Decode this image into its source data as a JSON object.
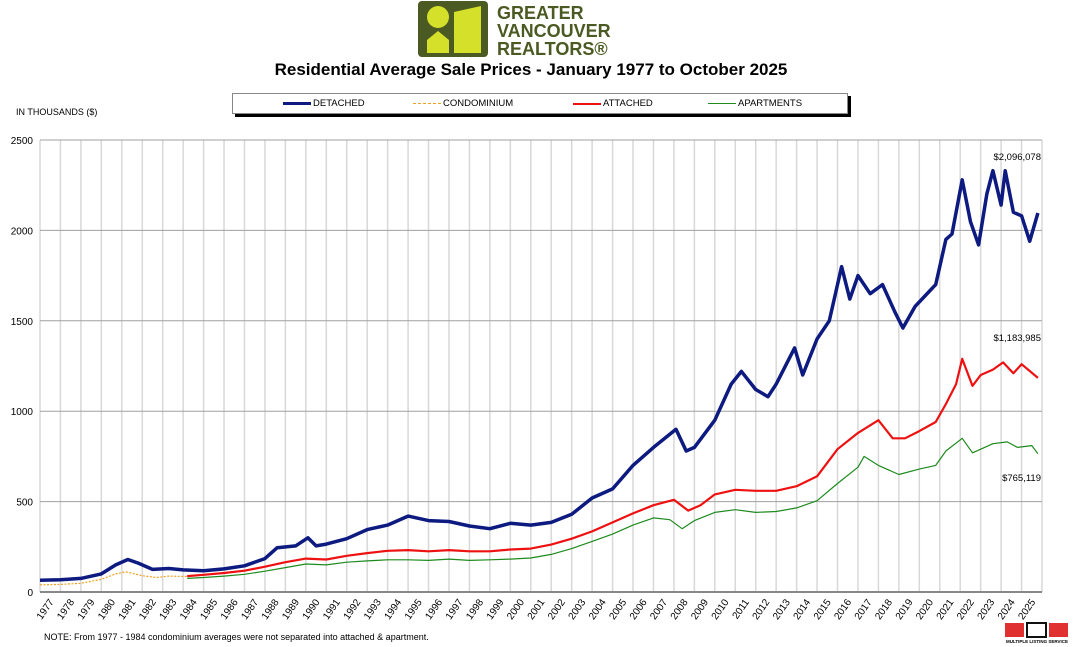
{
  "logo": {
    "text": "GREATER VANCOUVER REALTORS®",
    "color": "#4a5a22",
    "accent": "#d4e02a"
  },
  "mls_logo": {
    "text": "MLS",
    "subtitle": "MULTIPLE LISTING SERVICE"
  },
  "note": "NOTE:  From 1977 - 1984 condominium averages were not separated into attached & apartment.",
  "chart_data": {
    "type": "line",
    "title": "Residential Average Sale Prices  -  January 1977 to October 2025",
    "ylabel": "IN THOUSANDS ($)",
    "xlabel": "",
    "ylim": [
      0,
      2500
    ],
    "yticks": [
      "0",
      "500",
      "1000",
      "1500",
      "2000",
      "2500"
    ],
    "xticks": [
      "1977",
      "1978",
      "1979",
      "1980",
      "1981",
      "1982",
      "1983",
      "1984",
      "1985",
      "1986",
      "1987",
      "1988",
      "1989",
      "1990",
      "1991",
      "1992",
      "1993",
      "1994",
      "1995",
      "1996",
      "1997",
      "1998",
      "1999",
      "2000",
      "2001",
      "2002",
      "2003",
      "2004",
      "2005",
      "2006",
      "2007",
      "2008",
      "2009",
      "2010",
      "2011",
      "2012",
      "2013",
      "2014",
      "2015",
      "2016",
      "2017",
      "2018",
      "2019",
      "2020",
      "2021",
      "2022",
      "2023",
      "2024",
      "2025"
    ],
    "grid": true,
    "legend_placement": "top",
    "series": [
      {
        "name": "DETACHED",
        "color": "#0d1a80",
        "style": "thick",
        "points": [
          [
            1977,
            65
          ],
          [
            1978,
            68
          ],
          [
            1979,
            75
          ],
          [
            1980,
            100
          ],
          [
            1980.7,
            150
          ],
          [
            1981.3,
            180
          ],
          [
            1981.8,
            160
          ],
          [
            1982.5,
            125
          ],
          [
            1983.3,
            130
          ],
          [
            1984,
            122
          ],
          [
            1985,
            118
          ],
          [
            1986,
            128
          ],
          [
            1987,
            145
          ],
          [
            1988,
            185
          ],
          [
            1988.6,
            245
          ],
          [
            1989.5,
            255
          ],
          [
            1990.1,
            300
          ],
          [
            1990.5,
            255
          ],
          [
            1991,
            265
          ],
          [
            1992,
            295
          ],
          [
            1993,
            345
          ],
          [
            1994,
            370
          ],
          [
            1995,
            420
          ],
          [
            1996,
            395
          ],
          [
            1997,
            390
          ],
          [
            1998,
            365
          ],
          [
            1999,
            350
          ],
          [
            2000,
            380
          ],
          [
            2001,
            370
          ],
          [
            2002,
            385
          ],
          [
            2003,
            430
          ],
          [
            2004,
            520
          ],
          [
            2005,
            570
          ],
          [
            2006,
            700
          ],
          [
            2007,
            800
          ],
          [
            2008.1,
            900
          ],
          [
            2008.6,
            780
          ],
          [
            2009,
            800
          ],
          [
            2010,
            950
          ],
          [
            2010.8,
            1150
          ],
          [
            2011.3,
            1220
          ],
          [
            2012,
            1120
          ],
          [
            2012.6,
            1080
          ],
          [
            2013,
            1150
          ],
          [
            2013.9,
            1350
          ],
          [
            2014.3,
            1200
          ],
          [
            2015,
            1400
          ],
          [
            2015.6,
            1500
          ],
          [
            2016.2,
            1800
          ],
          [
            2016.6,
            1620
          ],
          [
            2017,
            1750
          ],
          [
            2017.6,
            1650
          ],
          [
            2018.2,
            1700
          ],
          [
            2018.8,
            1550
          ],
          [
            2019.2,
            1460
          ],
          [
            2019.8,
            1580
          ],
          [
            2020.3,
            1640
          ],
          [
            2020.8,
            1700
          ],
          [
            2021.3,
            1950
          ],
          [
            2021.6,
            1980
          ],
          [
            2022.1,
            2280
          ],
          [
            2022.5,
            2050
          ],
          [
            2022.9,
            1920
          ],
          [
            2023.3,
            2200
          ],
          [
            2023.6,
            2330
          ],
          [
            2024,
            2140
          ],
          [
            2024.2,
            2330
          ],
          [
            2024.6,
            2100
          ],
          [
            2025,
            2080
          ],
          [
            2025.4,
            1940
          ],
          [
            2025.8,
            2096
          ]
        ]
      },
      {
        "name": "CONDOMINIUM",
        "color": "#f0a020",
        "style": "dotted",
        "points": [
          [
            1977,
            40
          ],
          [
            1978,
            42
          ],
          [
            1979,
            48
          ],
          [
            1980,
            70
          ],
          [
            1980.7,
            100
          ],
          [
            1981.2,
            112
          ],
          [
            1982,
            90
          ],
          [
            1982.7,
            80
          ],
          [
            1983.3,
            88
          ],
          [
            1984.2,
            86
          ]
        ]
      },
      {
        "name": "ATTACHED",
        "color": "#ee1111",
        "style": "medium",
        "points": [
          [
            1984.2,
            88
          ],
          [
            1985,
            95
          ],
          [
            1986,
            105
          ],
          [
            1987,
            118
          ],
          [
            1988,
            140
          ],
          [
            1989,
            165
          ],
          [
            1990,
            185
          ],
          [
            1991,
            180
          ],
          [
            1992,
            200
          ],
          [
            1993,
            215
          ],
          [
            1994,
            228
          ],
          [
            1995,
            232
          ],
          [
            1996,
            225
          ],
          [
            1997,
            232
          ],
          [
            1998,
            225
          ],
          [
            1999,
            225
          ],
          [
            2000,
            235
          ],
          [
            2001,
            240
          ],
          [
            2002,
            262
          ],
          [
            2003,
            295
          ],
          [
            2004,
            335
          ],
          [
            2005,
            385
          ],
          [
            2006,
            435
          ],
          [
            2007,
            480
          ],
          [
            2008,
            510
          ],
          [
            2008.7,
            450
          ],
          [
            2009.3,
            480
          ],
          [
            2010,
            540
          ],
          [
            2011,
            565
          ],
          [
            2012,
            560
          ],
          [
            2013,
            560
          ],
          [
            2014,
            585
          ],
          [
            2015,
            640
          ],
          [
            2016,
            790
          ],
          [
            2017,
            880
          ],
          [
            2018,
            950
          ],
          [
            2018.7,
            850
          ],
          [
            2019.3,
            850
          ],
          [
            2020,
            890
          ],
          [
            2020.8,
            940
          ],
          [
            2021.3,
            1040
          ],
          [
            2021.8,
            1150
          ],
          [
            2022.1,
            1290
          ],
          [
            2022.6,
            1140
          ],
          [
            2023,
            1200
          ],
          [
            2023.6,
            1230
          ],
          [
            2024.1,
            1270
          ],
          [
            2024.6,
            1210
          ],
          [
            2025,
            1260
          ],
          [
            2025.8,
            1184
          ]
        ]
      },
      {
        "name": "APARTMENTS",
        "color": "#1e8a1e",
        "style": "thin",
        "points": [
          [
            1984.2,
            75
          ],
          [
            1985,
            80
          ],
          [
            1986,
            88
          ],
          [
            1987,
            98
          ],
          [
            1988,
            115
          ],
          [
            1989,
            135
          ],
          [
            1990,
            155
          ],
          [
            1991,
            150
          ],
          [
            1992,
            165
          ],
          [
            1993,
            172
          ],
          [
            1994,
            178
          ],
          [
            1995,
            178
          ],
          [
            1996,
            175
          ],
          [
            1997,
            182
          ],
          [
            1998,
            175
          ],
          [
            1999,
            178
          ],
          [
            2000,
            182
          ],
          [
            2001,
            188
          ],
          [
            2002,
            208
          ],
          [
            2003,
            240
          ],
          [
            2004,
            280
          ],
          [
            2005,
            320
          ],
          [
            2006,
            370
          ],
          [
            2007,
            410
          ],
          [
            2007.8,
            400
          ],
          [
            2008.4,
            350
          ],
          [
            2009,
            395
          ],
          [
            2010,
            440
          ],
          [
            2011,
            455
          ],
          [
            2012,
            440
          ],
          [
            2013,
            445
          ],
          [
            2014,
            465
          ],
          [
            2015,
            505
          ],
          [
            2016,
            600
          ],
          [
            2017,
            690
          ],
          [
            2017.3,
            750
          ],
          [
            2018,
            700
          ],
          [
            2019,
            650
          ],
          [
            2020,
            680
          ],
          [
            2020.8,
            700
          ],
          [
            2021.3,
            780
          ],
          [
            2022.1,
            850
          ],
          [
            2022.6,
            770
          ],
          [
            2023,
            790
          ],
          [
            2023.6,
            820
          ],
          [
            2024.3,
            830
          ],
          [
            2024.8,
            800
          ],
          [
            2025.5,
            810
          ],
          [
            2025.8,
            765
          ]
        ]
      }
    ],
    "annotations": [
      "$2,096,078",
      "$1,183,985",
      "$765,119"
    ]
  }
}
